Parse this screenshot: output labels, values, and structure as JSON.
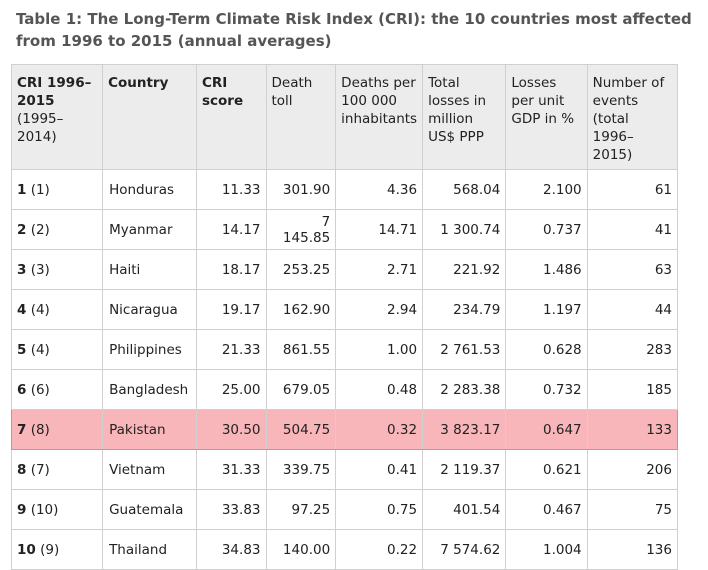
{
  "caption": "Table 1: The Long-Term Climate Risk Index (CRI): the 10 countries most affected from 1996 to 2015 (annual averages)",
  "headers": {
    "cri_rank_bold": "CRI 1996–2015",
    "cri_rank_sub": "(1995–2014)",
    "country": "Country",
    "cri_score": "CRI score",
    "death_toll": "Death toll",
    "deaths_per": "Deaths per 100 000 inhabitants",
    "total_losses": "Total losses in million US$ PPP",
    "losses_gdp": "Losses per unit GDP in %",
    "events": "Number of events (total 1996–2015)"
  },
  "rows": [
    {
      "rank": "1",
      "prev": "(1)",
      "country": "Honduras",
      "score": "11.33",
      "deaths": "301.90",
      "per100k": "4.36",
      "losses": "568.04",
      "gdp": "2.100",
      "events": "61"
    },
    {
      "rank": "2",
      "prev": "(2)",
      "country": "Myanmar",
      "score": "14.17",
      "deaths": "7 145.85",
      "per100k": "14.71",
      "losses": "1 300.74",
      "gdp": "0.737",
      "events": "41"
    },
    {
      "rank": "3",
      "prev": "(3)",
      "country": "Haiti",
      "score": "18.17",
      "deaths": "253.25",
      "per100k": "2.71",
      "losses": "221.92",
      "gdp": "1.486",
      "events": "63"
    },
    {
      "rank": "4",
      "prev": "(4)",
      "country": "Nicaragua",
      "score": "19.17",
      "deaths": "162.90",
      "per100k": "2.94",
      "losses": "234.79",
      "gdp": "1.197",
      "events": "44"
    },
    {
      "rank": "5",
      "prev": "(4)",
      "country": "Philippines",
      "score": "21.33",
      "deaths": "861.55",
      "per100k": "1.00",
      "losses": "2 761.53",
      "gdp": "0.628",
      "events": "283"
    },
    {
      "rank": "6",
      "prev": "(6)",
      "country": "Bangladesh",
      "score": "25.00",
      "deaths": "679.05",
      "per100k": "0.48",
      "losses": "2 283.38",
      "gdp": "0.732",
      "events": "185"
    },
    {
      "rank": "7",
      "prev": "(8)",
      "country": "Pakistan",
      "score": "30.50",
      "deaths": "504.75",
      "per100k": "0.32",
      "losses": "3 823.17",
      "gdp": "0.647",
      "events": "133"
    },
    {
      "rank": "8",
      "prev": "(7)",
      "country": "Vietnam",
      "score": "31.33",
      "deaths": "339.75",
      "per100k": "0.41",
      "losses": "2 119.37",
      "gdp": "0.621",
      "events": "206"
    },
    {
      "rank": "9",
      "prev": "(10)",
      "country": "Guatemala",
      "score": "33.83",
      "deaths": "97.25",
      "per100k": "0.75",
      "losses": "401.54",
      "gdp": "0.467",
      "events": "75"
    },
    {
      "rank": "10",
      "prev": "(9)",
      "country": "Thailand",
      "score": "34.83",
      "deaths": "140.00",
      "per100k": "0.22",
      "losses": "7 574.62",
      "gdp": "1.004",
      "events": "136"
    }
  ],
  "highlight_row_index": 6,
  "highlight_color": "#f8b6ba"
}
